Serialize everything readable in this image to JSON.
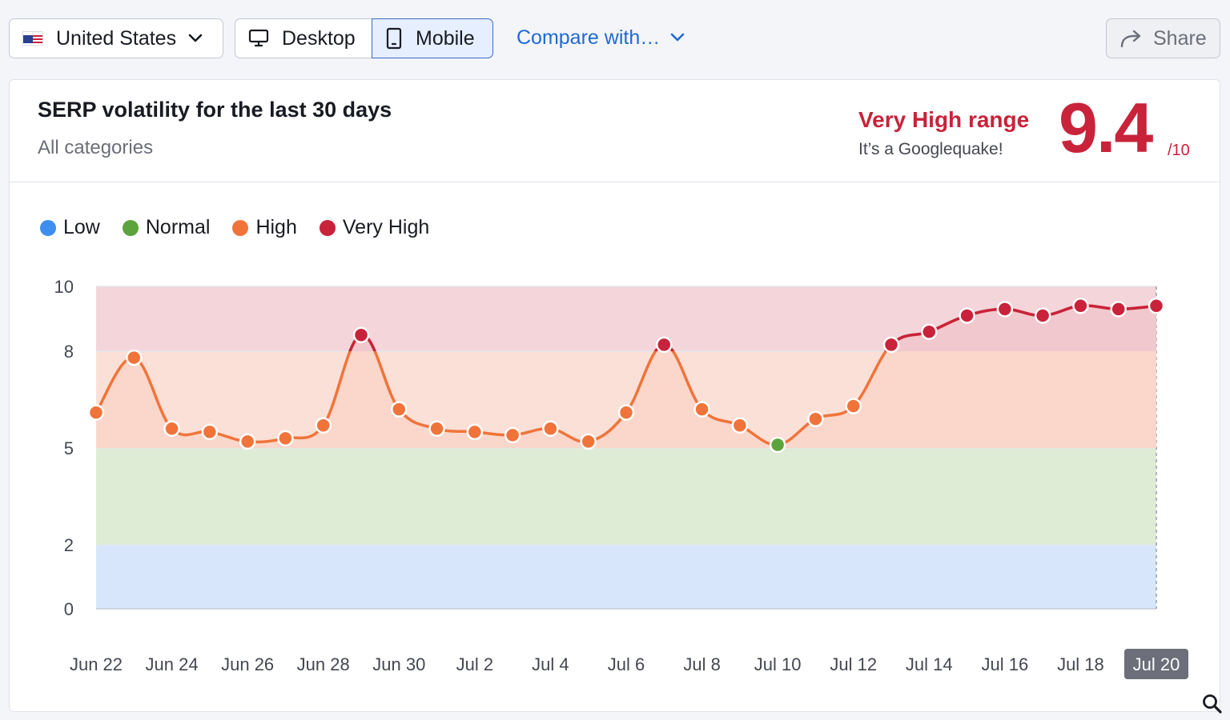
{
  "toolbar": {
    "country": "United States",
    "device_desktop": "Desktop",
    "device_mobile": "Mobile",
    "compare": "Compare with…",
    "share": "Share"
  },
  "header": {
    "title": "SERP volatility for the last 30 days",
    "subtitle": "All categories",
    "range_label": "Very High range",
    "range_sub": "It’s a Googlequake!",
    "score": "9.4",
    "score_max": "/10"
  },
  "legend": [
    {
      "label": "Low",
      "color": "#3e8eef"
    },
    {
      "label": "Normal",
      "color": "#5ba33b"
    },
    {
      "label": "High",
      "color": "#f0743a"
    },
    {
      "label": "Very High",
      "color": "#c8233a"
    }
  ],
  "chart_data": {
    "type": "line",
    "title": "",
    "xlabel": "",
    "ylabel": "",
    "ylim": [
      0,
      10
    ],
    "y_ticks": [
      0,
      2,
      5,
      8,
      10
    ],
    "x_tick_labels": [
      "Jun 22",
      "Jun 24",
      "Jun 26",
      "Jun 28",
      "Jun 30",
      "Jul 2",
      "Jul 4",
      "Jul 6",
      "Jul 8",
      "Jul 10",
      "Jul 12",
      "Jul 14",
      "Jul 16",
      "Jul 18",
      "Jul 20"
    ],
    "highlighted_x": "Jul 20",
    "bands": [
      {
        "name": "Low",
        "from": 0,
        "to": 2,
        "color": "#d8e6fb"
      },
      {
        "name": "Normal",
        "from": 2,
        "to": 5,
        "color": "#deecd6"
      },
      {
        "name": "High",
        "from": 5,
        "to": 8,
        "color": "#fbe0d7"
      },
      {
        "name": "Very High",
        "from": 8,
        "to": 10,
        "color": "#f3d5da"
      }
    ],
    "x": [
      "Jun 22",
      "Jun 23",
      "Jun 24",
      "Jun 25",
      "Jun 26",
      "Jun 27",
      "Jun 28",
      "Jun 29",
      "Jun 30",
      "Jul 1",
      "Jul 2",
      "Jul 3",
      "Jul 4",
      "Jul 5",
      "Jul 6",
      "Jul 7",
      "Jul 8",
      "Jul 9",
      "Jul 10",
      "Jul 11",
      "Jul 12",
      "Jul 13",
      "Jul 14",
      "Jul 15",
      "Jul 16",
      "Jul 17",
      "Jul 18",
      "Jul 19",
      "Jul 20"
    ],
    "series": [
      {
        "values": [
          6.1,
          7.8,
          5.6,
          5.5,
          5.2,
          5.3,
          5.7,
          8.5,
          6.2,
          5.6,
          5.5,
          5.4,
          5.6,
          5.2,
          6.1,
          8.2,
          6.2,
          5.7,
          5.1,
          5.9,
          6.3,
          8.2,
          8.6,
          9.1,
          9.3,
          9.1,
          9.4,
          9.3,
          9.4
        ]
      }
    ]
  }
}
